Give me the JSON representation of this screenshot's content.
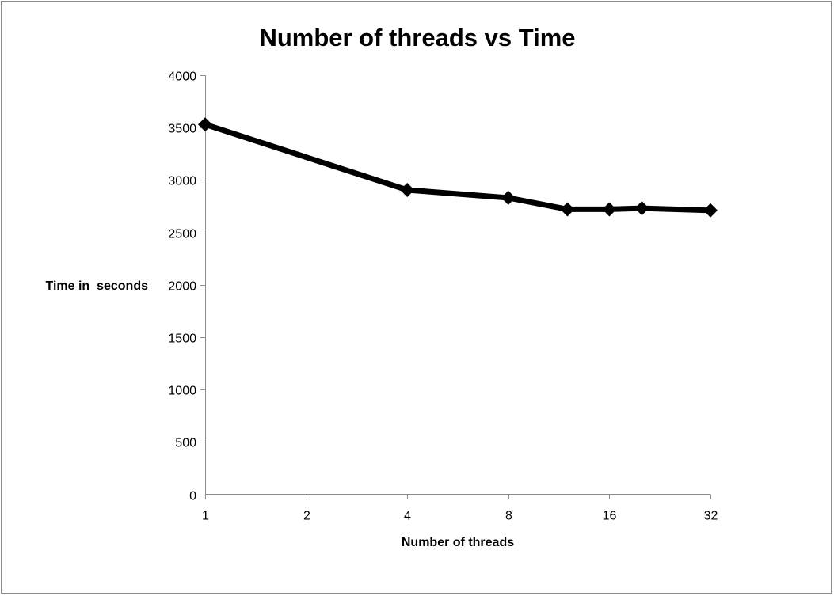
{
  "chart_data": {
    "type": "line",
    "title": "Number of threads vs Time",
    "xlabel": "Number of threads",
    "ylabel": "Time in  seconds",
    "x_scale": "log2",
    "x_ticks": [
      1,
      2,
      4,
      8,
      16,
      32
    ],
    "x_tick_labels": [
      "1",
      "2",
      "4",
      "8",
      "16",
      "32"
    ],
    "ylim": [
      0,
      4000
    ],
    "y_ticks": [
      0,
      500,
      1000,
      1500,
      2000,
      2500,
      3000,
      3500,
      4000
    ],
    "y_tick_labels": [
      "0",
      "500",
      "1000",
      "1500",
      "2000",
      "2500",
      "3000",
      "3500",
      "4000"
    ],
    "grid": false,
    "legend": "none",
    "series": [
      {
        "x": [
          1,
          4,
          8,
          12,
          16,
          20,
          32
        ],
        "y": [
          3530,
          2905,
          2830,
          2720,
          2720,
          2730,
          2710
        ],
        "color": "#000000",
        "marker": "diamond"
      }
    ]
  }
}
